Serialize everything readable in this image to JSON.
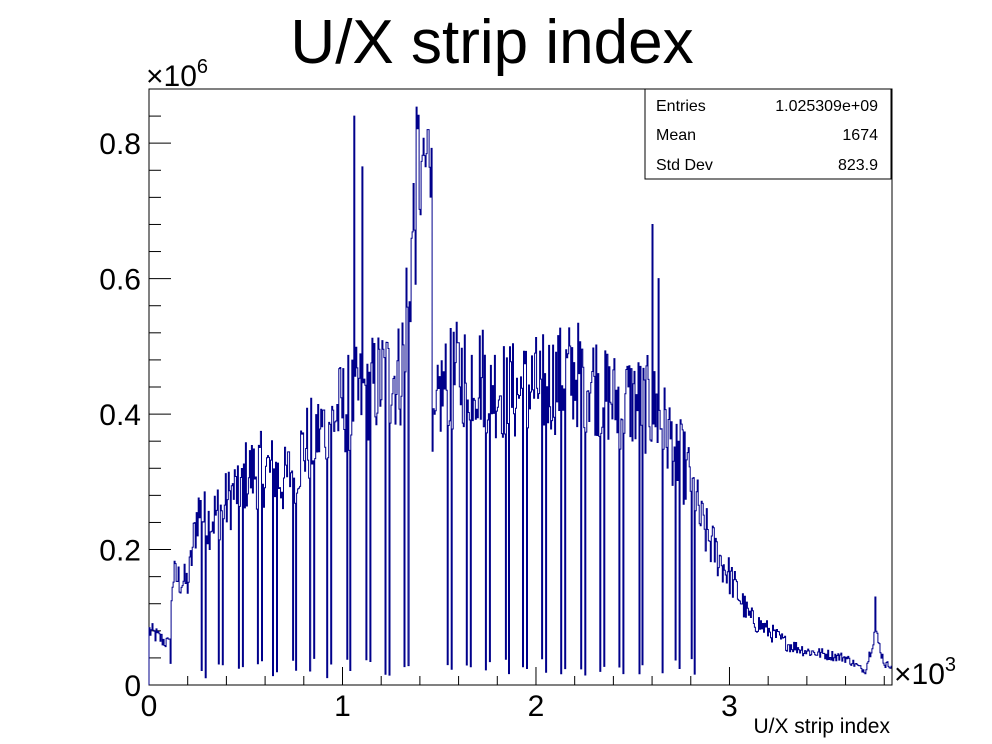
{
  "chart_data": {
    "type": "histogram",
    "title": "U/X strip index",
    "xlabel": "U/X strip index",
    "ylabel": "",
    "x_multiplier": "×10",
    "x_multiplier_exp": "3",
    "y_multiplier": "×10",
    "y_multiplier_exp": "6",
    "xlim": [
      0,
      3.84
    ],
    "ylim": [
      0,
      0.88
    ],
    "x_ticks": [
      0,
      1,
      2,
      3
    ],
    "x_tick_labels": [
      "0",
      "1",
      "2",
      "3"
    ],
    "y_ticks": [
      0,
      0.2,
      0.4,
      0.6,
      0.8
    ],
    "y_tick_labels": [
      "0",
      "0.2",
      "0.4",
      "0.6",
      "0.8"
    ],
    "grid": false,
    "line_color": "#00008b",
    "stats": {
      "entries_label": "Entries",
      "entries_value": "1.025309e+09",
      "mean_label": "Mean",
      "mean_value": "1674",
      "stddev_label": "Std Dev",
      "stddev_value": "823.9"
    },
    "series": [
      {
        "x": [
          0,
          0.05,
          0.1,
          0.12,
          0.2,
          0.25,
          0.3,
          0.4,
          0.5,
          0.6,
          0.7,
          0.8,
          0.9,
          1.0,
          1.05,
          1.1,
          1.2,
          1.3,
          1.4,
          1.45,
          1.5,
          1.6,
          1.7,
          1.8,
          1.9,
          2.0,
          2.1,
          2.2,
          2.3,
          2.4,
          2.5,
          2.6,
          2.7,
          2.8,
          2.85,
          2.9,
          3.0,
          3.1,
          3.2,
          3.3,
          3.4,
          3.5,
          3.6,
          3.7,
          3.75,
          3.8
        ],
        "y": [
          0.08,
          0.07,
          0.06,
          0.16,
          0.15,
          0.26,
          0.24,
          0.27,
          0.31,
          0.32,
          0.3,
          0.35,
          0.38,
          0.41,
          0.42,
          0.43,
          0.45,
          0.46,
          0.79,
          0.3,
          0.43,
          0.46,
          0.46,
          0.44,
          0.43,
          0.44,
          0.45,
          0.46,
          0.45,
          0.42,
          0.42,
          0.41,
          0.36,
          0.3,
          0.24,
          0.21,
          0.16,
          0.1,
          0.08,
          0.06,
          0.05,
          0.045,
          0.04,
          0.02,
          0.08,
          0.03
        ]
      }
    ],
    "spikes": [
      {
        "x": 1.06,
        "y": 0.84
      },
      {
        "x": 1.1,
        "y": 0.765
      },
      {
        "x": 1.44,
        "y": 0.82
      },
      {
        "x": 2.6,
        "y": 0.68
      },
      {
        "x": 2.63,
        "y": 0.6
      },
      {
        "x": 3.75,
        "y": 0.13
      }
    ],
    "dips": [
      0.11,
      0.27,
      0.29,
      0.36,
      0.38,
      0.46,
      0.48,
      0.56,
      0.58,
      0.64,
      0.66,
      0.74,
      0.76,
      0.83,
      0.85,
      0.92,
      0.94,
      1.02,
      1.04,
      1.12,
      1.14,
      1.22,
      1.24,
      1.32,
      1.34,
      1.42,
      1.46,
      1.54,
      1.56,
      1.64,
      1.66,
      1.74,
      1.76,
      1.84,
      1.86,
      1.93,
      1.95,
      2.03,
      2.05,
      2.13,
      2.15,
      2.23,
      2.25,
      2.33,
      2.35,
      2.43,
      2.45,
      2.53,
      2.55,
      2.63,
      2.65,
      2.72,
      2.74,
      2.8,
      2.82
    ]
  }
}
